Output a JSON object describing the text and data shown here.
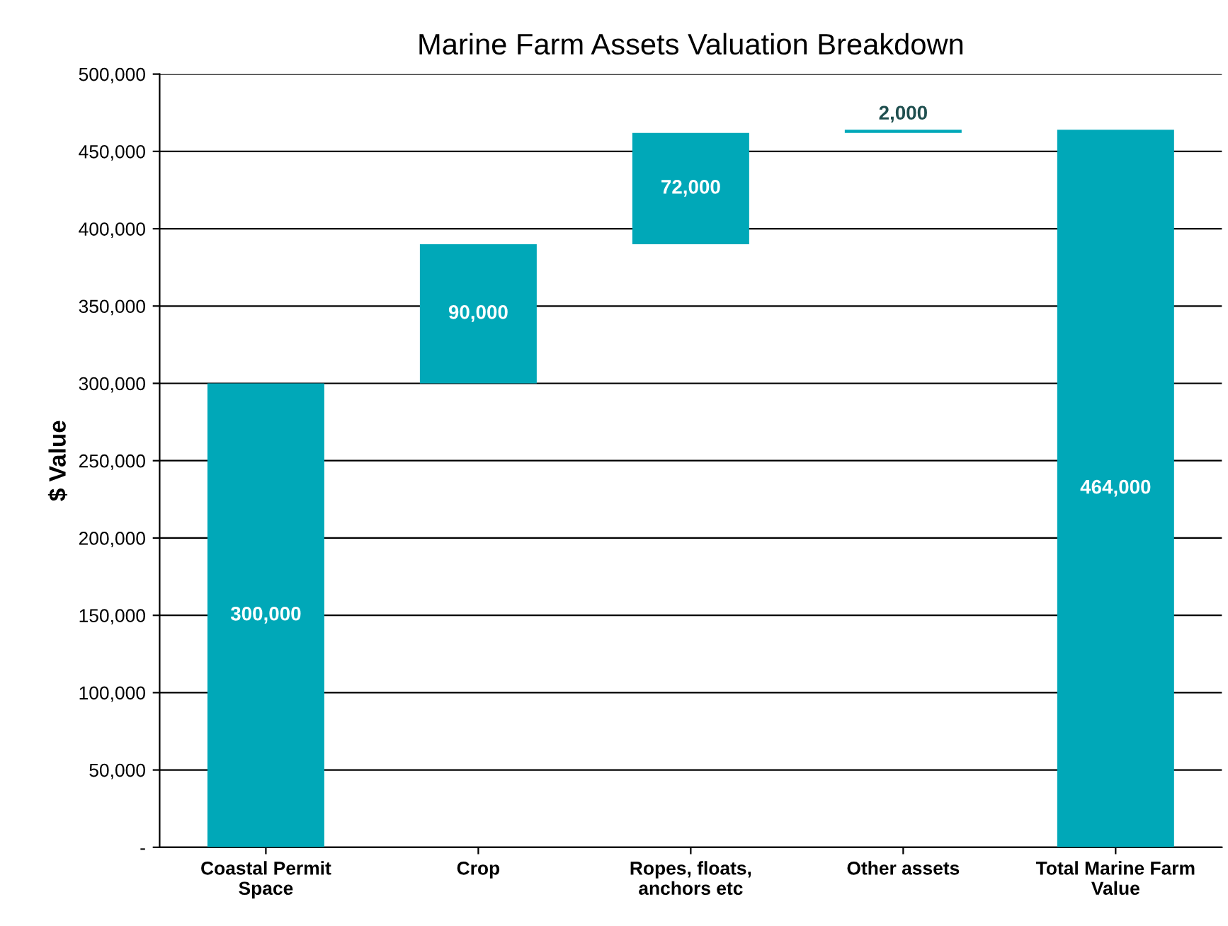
{
  "chart_data": {
    "type": "bar",
    "title": "Marine Farm Assets Valuation Breakdown",
    "ylabel": "$ Value",
    "categories": [
      "Coastal Permit\nSpace",
      "Crop",
      "Ropes, floats,\nanchors etc",
      "Other assets",
      "Total Marine Farm\nValue"
    ],
    "values": [
      300000,
      90000,
      72000,
      2000,
      464000
    ],
    "base": [
      0,
      300000,
      390000,
      462000,
      0
    ],
    "colors": [
      "#00a8b8",
      "#00a8b8",
      "#00a8b8",
      "#00a8b8",
      "#00a8b8"
    ],
    "value_labels": [
      "300,000",
      "90,000",
      "72,000",
      "2,000",
      "464,000"
    ],
    "ylim": [
      0,
      500000
    ],
    "yticks": [
      {
        "value": 0,
        "label": "-"
      },
      {
        "value": 50000,
        "label": "50,000"
      },
      {
        "value": 100000,
        "label": "100,000"
      },
      {
        "value": 150000,
        "label": "150,000"
      },
      {
        "value": 200000,
        "label": "200,000"
      },
      {
        "value": 250000,
        "label": "250,000"
      },
      {
        "value": 300000,
        "label": "300,000"
      },
      {
        "value": 350000,
        "label": "350,000"
      },
      {
        "value": 400000,
        "label": "400,000"
      },
      {
        "value": 450000,
        "label": "450,000"
      },
      {
        "value": 500000,
        "label": "500,000"
      }
    ],
    "grid": "y",
    "legend": false
  }
}
